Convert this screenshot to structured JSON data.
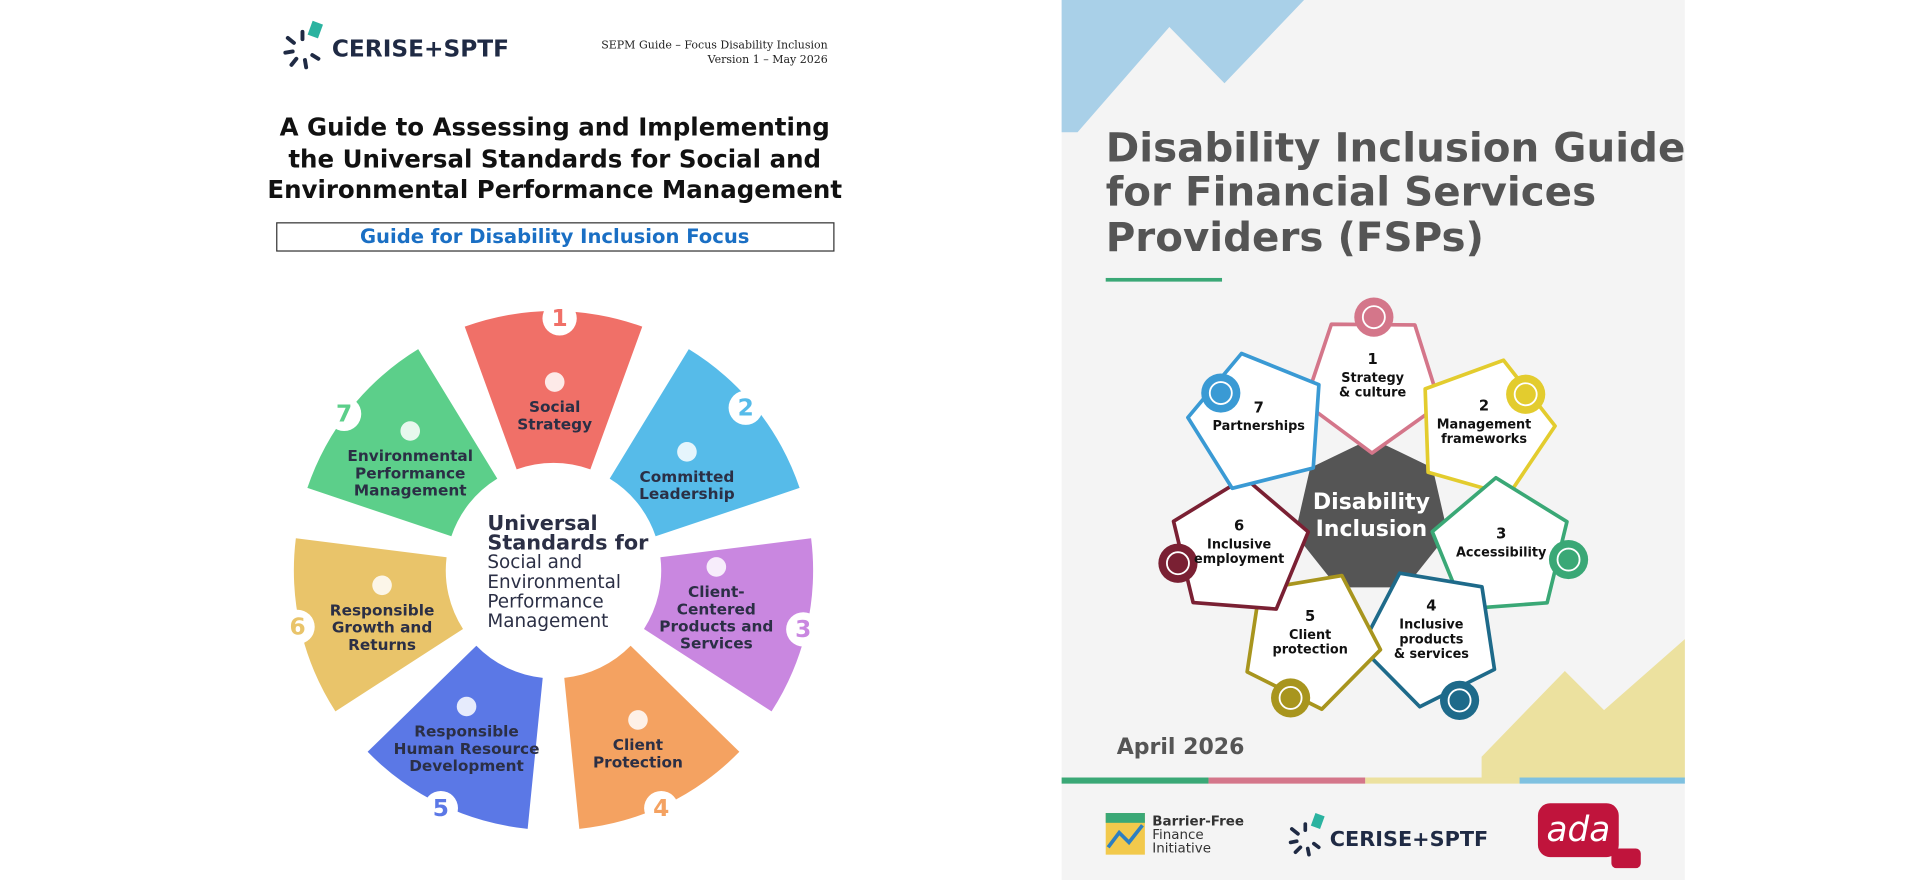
{
  "left": {
    "logo": "CERISE+SPTF",
    "header": [
      "SEPM Guide – Focus Disability Inclusion",
      "Version 1 – May 2026"
    ],
    "title": [
      "A Guide to Assessing and Implementing",
      "the Universal Standards for Social and",
      "Environmental Performance Management"
    ],
    "subtitle": "Guide for Disability Inclusion Focus",
    "center": [
      "Universal",
      "Standards for",
      "Social and",
      "Environmental",
      "Performance",
      "Management"
    ],
    "wheel": [
      {
        "number": 1,
        "label": [
          "Social",
          "Strategy"
        ]
      },
      {
        "number": 2,
        "label": [
          "Committed",
          "Leadership"
        ]
      },
      {
        "number": 3,
        "label": [
          "Client-",
          "Centered",
          "Products and",
          "Services"
        ]
      },
      {
        "number": 4,
        "label": [
          "Client",
          "Protection"
        ]
      },
      {
        "number": 5,
        "label": [
          "Responsible",
          "Human Resource",
          "Development"
        ]
      },
      {
        "number": 6,
        "label": [
          "Responsible",
          "Growth and",
          "Returns"
        ]
      },
      {
        "number": 7,
        "label": [
          "Environmental",
          "Performance",
          "Management"
        ]
      }
    ]
  },
  "right": {
    "title": [
      "Disability Inclusion Guide",
      "for Financial Services",
      "Providers (FSPs)"
    ],
    "hub": [
      "Disability",
      "Inclusion"
    ],
    "elements": [
      {
        "number": 1,
        "label": [
          "Strategy",
          "& culture"
        ]
      },
      {
        "number": 2,
        "label": [
          "Management",
          "frameworks"
        ]
      },
      {
        "number": 3,
        "label": [
          "Accessibility"
        ]
      },
      {
        "number": 4,
        "label": [
          "Inclusive",
          "products",
          "& services"
        ]
      },
      {
        "number": 5,
        "label": [
          "Client",
          "protection"
        ]
      },
      {
        "number": 6,
        "label": [
          "Inclusive",
          "employment"
        ]
      },
      {
        "number": 7,
        "label": [
          "Partnerships"
        ]
      }
    ],
    "date": "April 2026",
    "partner": [
      "Barrier-Free",
      "Finance",
      "Initiative"
    ],
    "logo": "CERISE+SPTF",
    "ada": "ada"
  }
}
